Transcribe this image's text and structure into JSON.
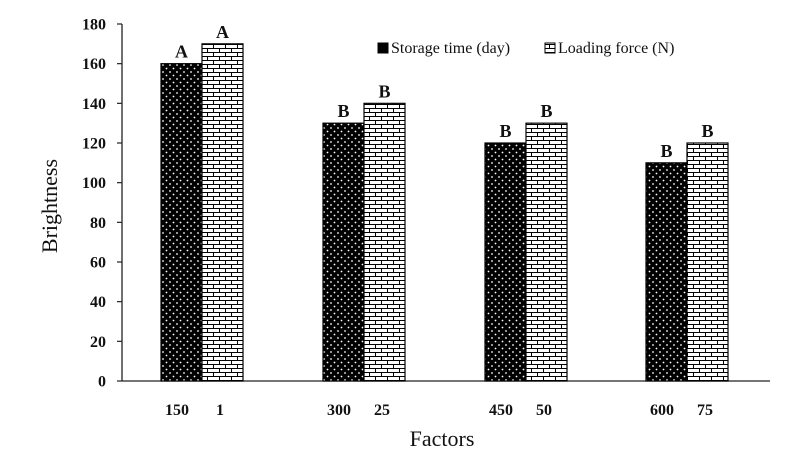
{
  "chart_data": {
    "type": "bar",
    "title": "",
    "xlabel": "Factors",
    "ylabel": "Brightness",
    "ylim": [
      0,
      180
    ],
    "yticks": [
      0,
      20,
      40,
      60,
      80,
      100,
      120,
      140,
      160,
      180
    ],
    "grid": false,
    "legend_position": "top-right",
    "categories": [
      {
        "primary": "150",
        "secondary": "1"
      },
      {
        "primary": "300",
        "secondary": "25"
      },
      {
        "primary": "450",
        "secondary": "50"
      },
      {
        "primary": "600",
        "secondary": "75"
      }
    ],
    "series": [
      {
        "name": "Storage time (day)",
        "pattern": "dots-on-black",
        "color": "#000000",
        "values": [
          160,
          130,
          120,
          110
        ],
        "letters": [
          "A",
          "B",
          "B",
          "B"
        ]
      },
      {
        "name": "Loading force (N)",
        "pattern": "brick",
        "color": "#ffffff",
        "values": [
          170,
          140,
          130,
          120
        ],
        "letters": [
          "A",
          "B",
          "B",
          "B"
        ]
      }
    ]
  }
}
